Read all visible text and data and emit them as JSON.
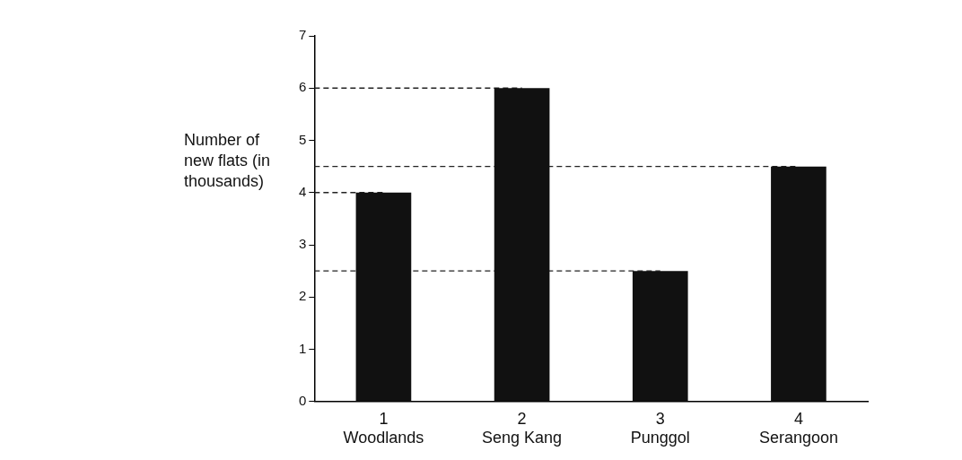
{
  "chart_data": {
    "type": "bar",
    "ylabel": "Number of new flats (in thousands)",
    "categories": [
      "1\nWoodlands",
      "2\nSeng Kang",
      "3\nPunggol",
      "4\nSerangoon"
    ],
    "values": [
      4,
      6,
      2.5,
      4.5
    ],
    "color": "#111111",
    "ylim": [
      0,
      7
    ],
    "yticks": [
      0,
      1,
      2,
      3,
      4,
      5,
      6,
      7
    ],
    "grid": false,
    "legend": false,
    "ref_lines": [
      {
        "axis": "y",
        "value": 6,
        "line_style": "dashed",
        "color": "#222222"
      },
      {
        "axis": "y",
        "value": 4.5,
        "line_style": "dashed",
        "color": "#222222"
      },
      {
        "axis": "y",
        "value": 4,
        "line_style": "dashed",
        "color": "#222222"
      },
      {
        "axis": "y",
        "value": 2.5,
        "line_style": "dashed",
        "color": "#222222"
      }
    ]
  }
}
